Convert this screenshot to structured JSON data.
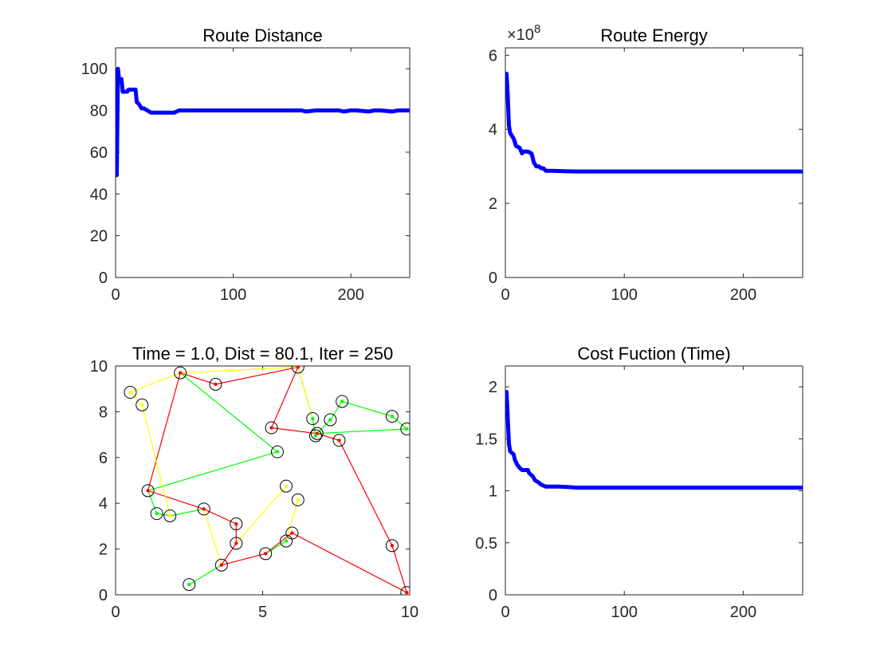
{
  "chart_data": [
    {
      "id": "route-distance",
      "type": "line",
      "title": "Route Distance",
      "xlim": [
        0,
        250
      ],
      "ylim": [
        0,
        110
      ],
      "xticks": [
        0,
        100,
        200
      ],
      "yticks": [
        0,
        20,
        40,
        60,
        80,
        100
      ],
      "color": "#0000ff",
      "series": [
        {
          "name": "distance",
          "x": [
            1,
            2,
            3,
            5,
            6,
            10,
            11,
            17,
            18,
            20,
            22,
            24,
            27,
            30,
            33,
            37,
            50,
            54,
            56,
            62,
            66,
            82,
            86,
            128,
            136,
            150,
            158,
            162,
            170,
            190,
            194,
            200,
            205,
            215,
            220,
            225,
            235,
            240,
            245,
            250
          ],
          "y": [
            49,
            100,
            95,
            95,
            89,
            89,
            90,
            90,
            84,
            83,
            81,
            81,
            80,
            79,
            79,
            79,
            79,
            80,
            80,
            80,
            80,
            80,
            80,
            80,
            80,
            80,
            80,
            79.5,
            80,
            80,
            79.5,
            80,
            80,
            79.5,
            80,
            80,
            79.5,
            80,
            80,
            80
          ]
        }
      ]
    },
    {
      "id": "route-energy",
      "type": "line",
      "title": "Route Energy",
      "exponent": "8",
      "xlim": [
        0,
        250
      ],
      "ylim": [
        0,
        6.2
      ],
      "xticks": [
        0,
        100,
        200
      ],
      "yticks": [
        0,
        2,
        4,
        6
      ],
      "color": "#0000ff",
      "series": [
        {
          "name": "energy",
          "x": [
            1,
            2,
            3,
            4,
            5,
            7,
            9,
            12,
            14,
            15,
            19,
            22,
            24,
            26,
            28,
            30,
            32,
            34,
            40,
            50,
            60,
            100,
            150,
            200,
            250
          ],
          "y": [
            5.5,
            4.9,
            4.1,
            3.9,
            3.85,
            3.75,
            3.55,
            3.5,
            3.35,
            3.4,
            3.4,
            3.35,
            3.1,
            3.0,
            3.0,
            2.95,
            2.95,
            2.88,
            2.88,
            2.87,
            2.86,
            2.86,
            2.86,
            2.86,
            2.86
          ]
        }
      ]
    },
    {
      "id": "route-map",
      "type": "scatter",
      "title": "Time = 1.0, Dist = 80.1, Iter = 250",
      "xlim": [
        0,
        10
      ],
      "ylim": [
        0,
        10
      ],
      "xticks": [
        0,
        5,
        10
      ],
      "yticks": [
        0,
        2,
        4,
        6,
        8,
        10
      ],
      "cities": [
        [
          2.2,
          9.7
        ],
        [
          3.4,
          9.2
        ],
        [
          6.2,
          9.95
        ],
        [
          0.5,
          8.85
        ],
        [
          0.9,
          8.3
        ],
        [
          5.3,
          7.3
        ],
        [
          6.7,
          7.7
        ],
        [
          7.7,
          8.45
        ],
        [
          7.3,
          7.65
        ],
        [
          9.4,
          7.8
        ],
        [
          9.9,
          7.25
        ],
        [
          6.8,
          6.95
        ],
        [
          6.85,
          7.05
        ],
        [
          7.6,
          6.75
        ],
        [
          5.5,
          6.25
        ],
        [
          1.1,
          4.55
        ],
        [
          5.8,
          4.75
        ],
        [
          6.2,
          4.15
        ],
        [
          1.4,
          3.55
        ],
        [
          1.85,
          3.45
        ],
        [
          3.0,
          3.75
        ],
        [
          4.1,
          3.1
        ],
        [
          4.1,
          2.25
        ],
        [
          6.0,
          2.7
        ],
        [
          5.8,
          2.35
        ],
        [
          9.4,
          2.15
        ],
        [
          5.1,
          1.8
        ],
        [
          3.6,
          1.3
        ],
        [
          2.5,
          0.45
        ],
        [
          9.9,
          0.1
        ]
      ],
      "legs": [
        {
          "color": "#ff0000",
          "pts": [
            [
              6.2,
              9.95
            ],
            [
              5.3,
              7.3
            ],
            [
              6.85,
              7.05
            ],
            [
              7.6,
              6.75
            ],
            [
              9.4,
              2.15
            ],
            [
              9.9,
              0.1
            ],
            [
              6.0,
              2.7
            ],
            [
              5.1,
              1.8
            ],
            [
              3.6,
              1.3
            ],
            [
              4.1,
              2.25
            ],
            [
              4.1,
              3.1
            ],
            [
              3.0,
              3.75
            ],
            [
              1.1,
              4.55
            ],
            [
              2.2,
              9.7
            ],
            [
              3.4,
              9.2
            ],
            [
              6.2,
              9.95
            ]
          ]
        },
        {
          "color": "#00ff00",
          "pts": [
            [
              2.5,
              0.45
            ],
            [
              3.6,
              1.3
            ]
          ]
        },
        {
          "color": "#00ff00",
          "pts": [
            [
              5.1,
              1.8
            ],
            [
              5.8,
              2.35
            ]
          ]
        },
        {
          "color": "#00ff00",
          "pts": [
            [
              1.85,
              3.45
            ],
            [
              1.4,
              3.55
            ],
            [
              1.1,
              4.55
            ],
            [
              5.5,
              6.25
            ]
          ]
        },
        {
          "color": "#00ff00",
          "pts": [
            [
              1.85,
              3.45
            ],
            [
              3.0,
              3.75
            ]
          ]
        },
        {
          "color": "#00ff00",
          "pts": [
            [
              2.2,
              9.7
            ],
            [
              5.5,
              6.25
            ]
          ]
        },
        {
          "color": "#00ff00",
          "pts": [
            [
              6.2,
              9.95
            ],
            [
              6.7,
              7.7
            ],
            [
              6.8,
              6.95
            ]
          ]
        },
        {
          "color": "#00ff00",
          "pts": [
            [
              6.85,
              7.05
            ],
            [
              9.9,
              7.25
            ],
            [
              9.4,
              7.8
            ],
            [
              7.7,
              8.45
            ],
            [
              7.3,
              7.65
            ],
            [
              6.85,
              7.05
            ]
          ]
        },
        {
          "color": "#ffff00",
          "pts": [
            [
              2.2,
              9.7
            ],
            [
              0.5,
              8.85
            ],
            [
              0.9,
              8.3
            ],
            [
              1.85,
              3.45
            ]
          ]
        },
        {
          "color": "#ffff00",
          "pts": [
            [
              2.2,
              9.7
            ],
            [
              6.2,
              9.95
            ],
            [
              6.7,
              7.7
            ]
          ]
        },
        {
          "color": "#ffff00",
          "pts": [
            [
              3.0,
              3.75
            ],
            [
              3.6,
              1.3
            ]
          ]
        },
        {
          "color": "#ffff00",
          "pts": [
            [
              4.1,
              2.25
            ],
            [
              5.8,
              4.75
            ]
          ]
        },
        {
          "color": "#ffff00",
          "pts": [
            [
              5.8,
              2.35
            ],
            [
              6.2,
              4.15
            ]
          ]
        }
      ],
      "dots": [
        {
          "color": "#ff0000",
          "pts": [
            [
              2.2,
              9.7
            ],
            [
              6.2,
              9.95
            ],
            [
              5.3,
              7.3
            ],
            [
              6.85,
              7.05
            ],
            [
              7.6,
              6.75
            ],
            [
              1.1,
              4.55
            ],
            [
              3.0,
              3.75
            ],
            [
              4.1,
              3.1
            ],
            [
              4.1,
              2.25
            ],
            [
              3.6,
              1.3
            ],
            [
              5.1,
              1.8
            ],
            [
              6.0,
              2.7
            ],
            [
              9.4,
              2.15
            ],
            [
              9.9,
              0.1
            ],
            [
              3.4,
              9.2
            ]
          ]
        },
        {
          "color": "#00ff00",
          "pts": [
            [
              6.7,
              7.7
            ],
            [
              7.7,
              8.45
            ],
            [
              7.3,
              7.65
            ],
            [
              9.4,
              7.8
            ],
            [
              9.9,
              7.25
            ],
            [
              6.8,
              6.95
            ],
            [
              5.5,
              6.25
            ],
            [
              1.4,
              3.55
            ],
            [
              5.8,
              2.35
            ],
            [
              2.5,
              0.45
            ]
          ]
        },
        {
          "color": "#ffff00",
          "pts": [
            [
              0.5,
              8.85
            ],
            [
              0.9,
              8.3
            ],
            [
              1.85,
              3.45
            ],
            [
              5.8,
              4.75
            ],
            [
              6.2,
              4.15
            ]
          ]
        }
      ]
    },
    {
      "id": "cost-function",
      "type": "line",
      "title": "Cost Fuction (Time)",
      "xlim": [
        0,
        250
      ],
      "ylim": [
        0,
        2.2
      ],
      "xticks": [
        0,
        100,
        200
      ],
      "yticks": [
        0,
        0.5,
        1,
        1.5,
        2
      ],
      "color": "#0000ff",
      "series": [
        {
          "name": "cost",
          "x": [
            1,
            2,
            3,
            4,
            5,
            7,
            8,
            10,
            12,
            14,
            19,
            20,
            23,
            25,
            28,
            30,
            32,
            34,
            45,
            55,
            60,
            100,
            150,
            200,
            250
          ],
          "y": [
            1.95,
            1.7,
            1.45,
            1.38,
            1.37,
            1.35,
            1.3,
            1.25,
            1.22,
            1.2,
            1.2,
            1.17,
            1.14,
            1.1,
            1.08,
            1.06,
            1.05,
            1.04,
            1.04,
            1.035,
            1.03,
            1.03,
            1.03,
            1.03,
            1.03
          ]
        }
      ]
    }
  ]
}
